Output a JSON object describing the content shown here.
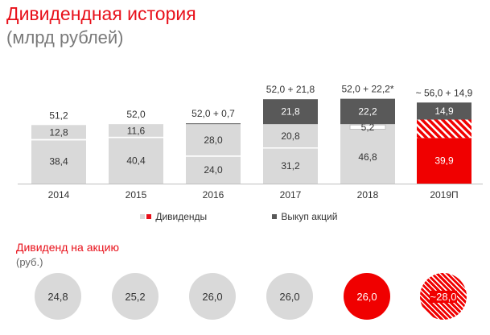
{
  "header": {
    "title": "Дивидендная история",
    "subtitle": "(млрд рублей)"
  },
  "chart_data": {
    "type": "bar",
    "stacked": true,
    "categories": [
      "2014",
      "2015",
      "2016",
      "2017",
      "2018",
      "2019П"
    ],
    "top_labels": [
      "51,2",
      "52,0",
      "52,0 + 0,7",
      "52,0 + 21,8",
      "52,0 + 22,2*",
      "~ 56,0 + 14,9"
    ],
    "segments": [
      [
        {
          "value": 38.4,
          "label": "38,4",
          "kind": "dividend"
        },
        {
          "value": 12.8,
          "label": "12,8",
          "kind": "dividend"
        }
      ],
      [
        {
          "value": 40.4,
          "label": "40,4",
          "kind": "dividend"
        },
        {
          "value": 11.6,
          "label": "11,6",
          "kind": "dividend"
        }
      ],
      [
        {
          "value": 24.0,
          "label": "24,0",
          "kind": "dividend"
        },
        {
          "value": 28.0,
          "label": "28,0",
          "kind": "dividend"
        },
        {
          "value": 0.7,
          "label": "",
          "kind": "buyback"
        }
      ],
      [
        {
          "value": 31.2,
          "label": "31,2",
          "kind": "dividend"
        },
        {
          "value": 20.8,
          "label": "20,8",
          "kind": "dividend"
        },
        {
          "value": 21.8,
          "label": "21,8",
          "kind": "buyback"
        }
      ],
      [
        {
          "value": 46.8,
          "label": "46,8",
          "kind": "dividend"
        },
        {
          "value": 5.2,
          "label": "5,2",
          "kind": "dividend-outlined"
        },
        {
          "value": 22.2,
          "label": "22,2",
          "kind": "buyback"
        }
      ],
      [
        {
          "value": 39.9,
          "label": "39,9",
          "kind": "dividend-red"
        },
        {
          "value": 16.1,
          "label": "",
          "kind": "dividend-hatched"
        },
        {
          "value": 14.9,
          "label": "14,9",
          "kind": "buyback"
        }
      ]
    ],
    "legend": [
      {
        "label": "Дивиденды",
        "colors": [
          "#d9d9d9",
          "#e8101a"
        ]
      },
      {
        "label": "Выкуп акций",
        "colors": [
          "#595959"
        ]
      }
    ],
    "ylim": [
      0,
      80
    ],
    "grid": false,
    "colors": {
      "dividend": "#d9d9d9",
      "buyback": "#595959",
      "red": "#f00000",
      "text": "#333333"
    }
  },
  "dividend_per_share": {
    "title": "Дивиденд на акцию",
    "unit": "(руб.)",
    "values": [
      {
        "label": "24,8",
        "style": "grey"
      },
      {
        "label": "25,2",
        "style": "grey"
      },
      {
        "label": "26,0",
        "style": "grey"
      },
      {
        "label": "26,0",
        "style": "grey"
      },
      {
        "label": "26,0",
        "style": "red"
      },
      {
        "label": "~28,0",
        "style": "hatched"
      }
    ]
  }
}
